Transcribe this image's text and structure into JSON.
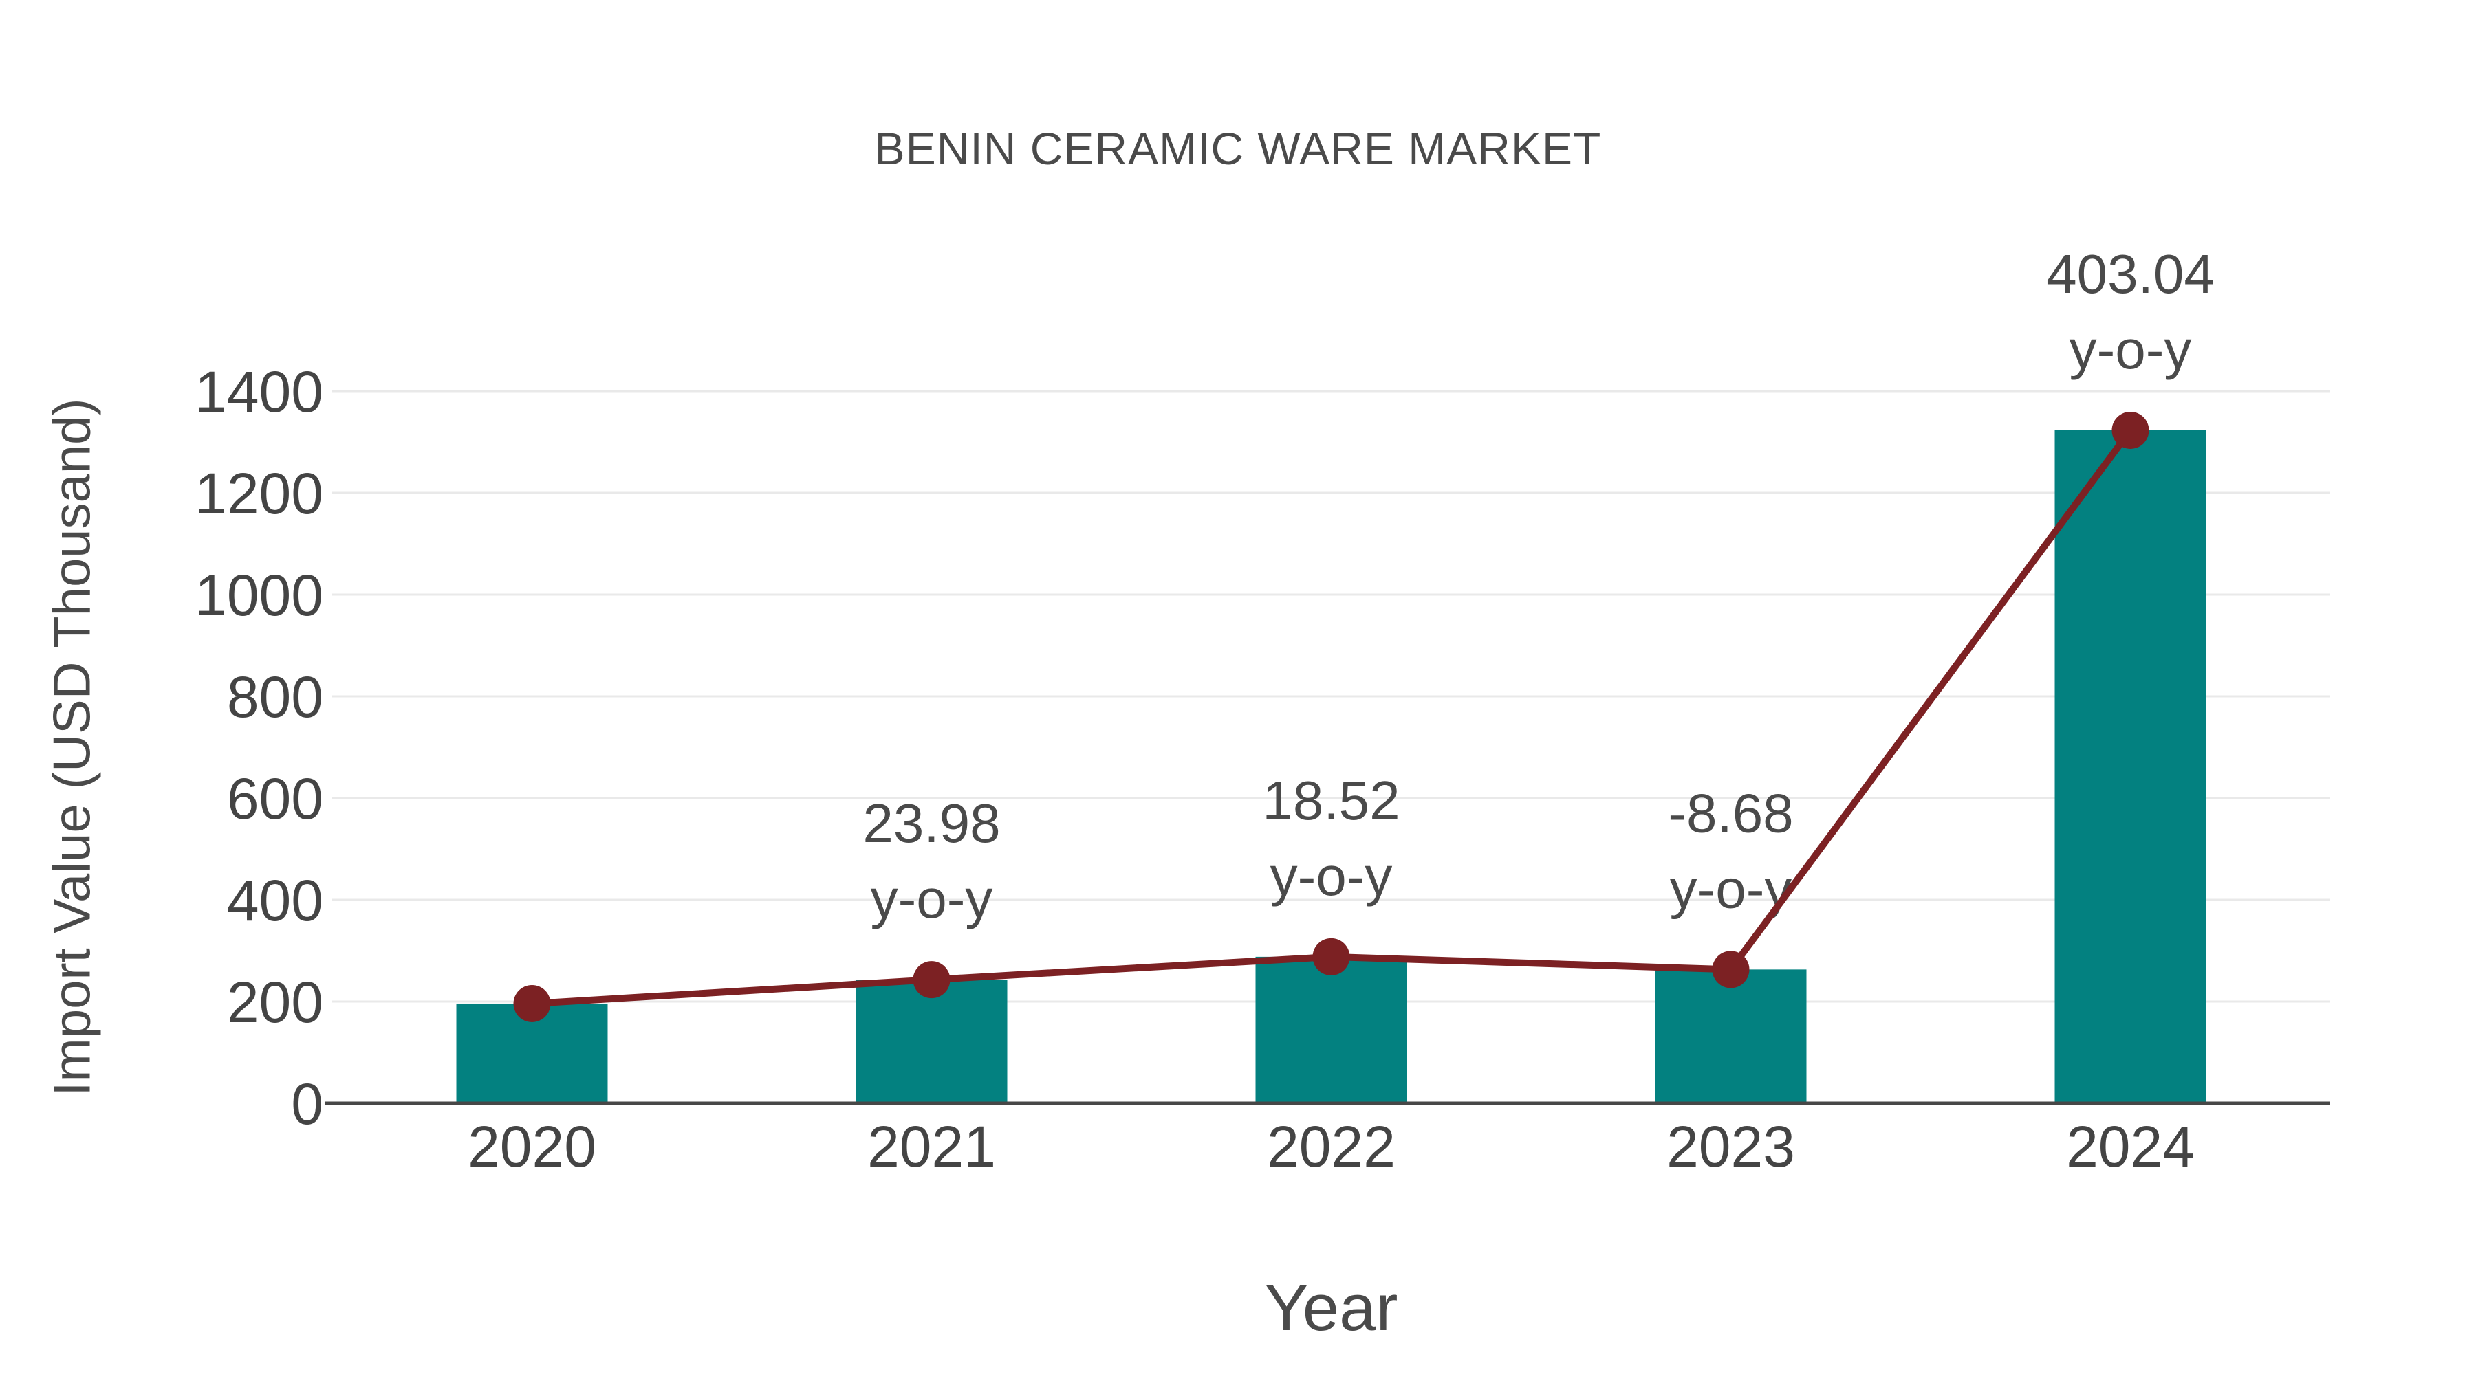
{
  "chart": {
    "title": "BENIN CERAMIC WARE MARKET",
    "xlabel": "Year",
    "ylabel": "Import Value (USD Thousand)"
  },
  "chart_data": {
    "type": "bar",
    "title": "BENIN CERAMIC WARE MARKET",
    "xlabel": "Year",
    "ylabel": "Import Value (USD Thousand)",
    "categories": [
      "2020",
      "2021",
      "2022",
      "2023",
      "2024"
    ],
    "series": [
      {
        "name": "Import Value (USD Thousand)",
        "type": "bar",
        "values": [
          196,
          243,
          288,
          263,
          1323
        ]
      },
      {
        "name": "y-o-y trend line",
        "type": "line",
        "values": [
          196,
          243,
          288,
          263,
          1323
        ]
      }
    ],
    "annotations": [
      {
        "category": "2021",
        "value": "23.98",
        "suffix": "y-o-y"
      },
      {
        "category": "2022",
        "value": "18.52",
        "suffix": "y-o-y"
      },
      {
        "category": "2023",
        "value": "-8.68",
        "suffix": "y-o-y"
      },
      {
        "category": "2024",
        "value": "403.04",
        "suffix": "y-o-y"
      }
    ],
    "yticks": [
      0,
      200,
      400,
      600,
      800,
      1000,
      1200,
      1400
    ],
    "ylim": [
      0,
      1400
    ],
    "grid": true,
    "legend_position": "none",
    "colors": {
      "bar": "#038180",
      "line": "#7c2123",
      "marker": "#7c2123",
      "text": "#4a4a4a",
      "tick_text": "#444444",
      "grid": "#e9e9e9",
      "axis": "#474747",
      "background": "#ffffff"
    }
  }
}
